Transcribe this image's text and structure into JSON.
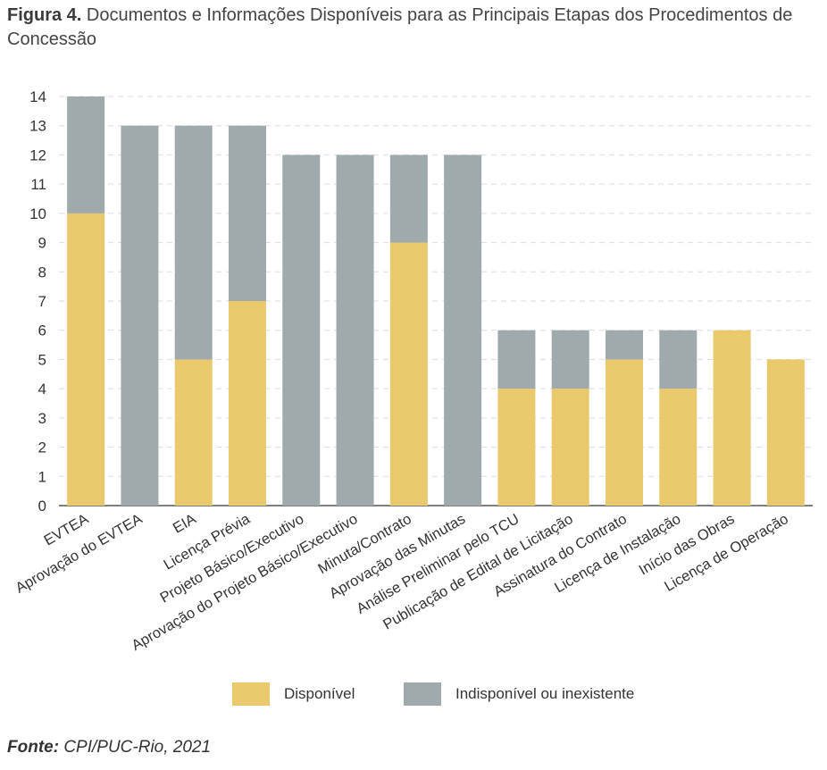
{
  "title": {
    "figure_label": "Figura 4.",
    "text": "Documentos e Informações Disponíveis para as Principais Etapas dos Procedimentos de Concessão"
  },
  "source": {
    "label": "Fonte:",
    "text": "CPI/PUC-Rio, 2021"
  },
  "colors": {
    "disponivel": "#E9C96C",
    "indisponivel": "#9EAAAB",
    "grid": "#DDDDDD"
  },
  "chart_data": {
    "type": "bar",
    "stacked": true,
    "categories": [
      "EVTEA",
      "Aprovação do EVTEA",
      "EIA",
      "Licença Prévia",
      "Projeto Básico/Executivo",
      "Aprovação do Projeto Básico/Executivo",
      "Minuta/Contrato",
      "Aprovação das Minutas",
      "Análise Preliminar pelo TCU",
      "Publicação de Edital de Licitação",
      "Assinatura do Contrato",
      "Licença de Instalação",
      "Início das Obras",
      "Licença de Operação"
    ],
    "series": [
      {
        "name": "Disponível",
        "color": "#E9C96C",
        "values": [
          10,
          0,
          5,
          7,
          0,
          0,
          9,
          0,
          4,
          4,
          5,
          4,
          6,
          5
        ]
      },
      {
        "name": "Indisponível ou inexistente",
        "color": "#9EAAAB",
        "values": [
          4,
          13,
          8,
          6,
          12,
          12,
          3,
          12,
          2,
          2,
          1,
          2,
          0,
          0
        ]
      }
    ],
    "ylim": [
      0,
      14
    ],
    "yticks": [
      0,
      1,
      2,
      3,
      4,
      5,
      6,
      7,
      8,
      9,
      10,
      11,
      12,
      13,
      14
    ],
    "grid": true,
    "legend_position": "bottom"
  }
}
